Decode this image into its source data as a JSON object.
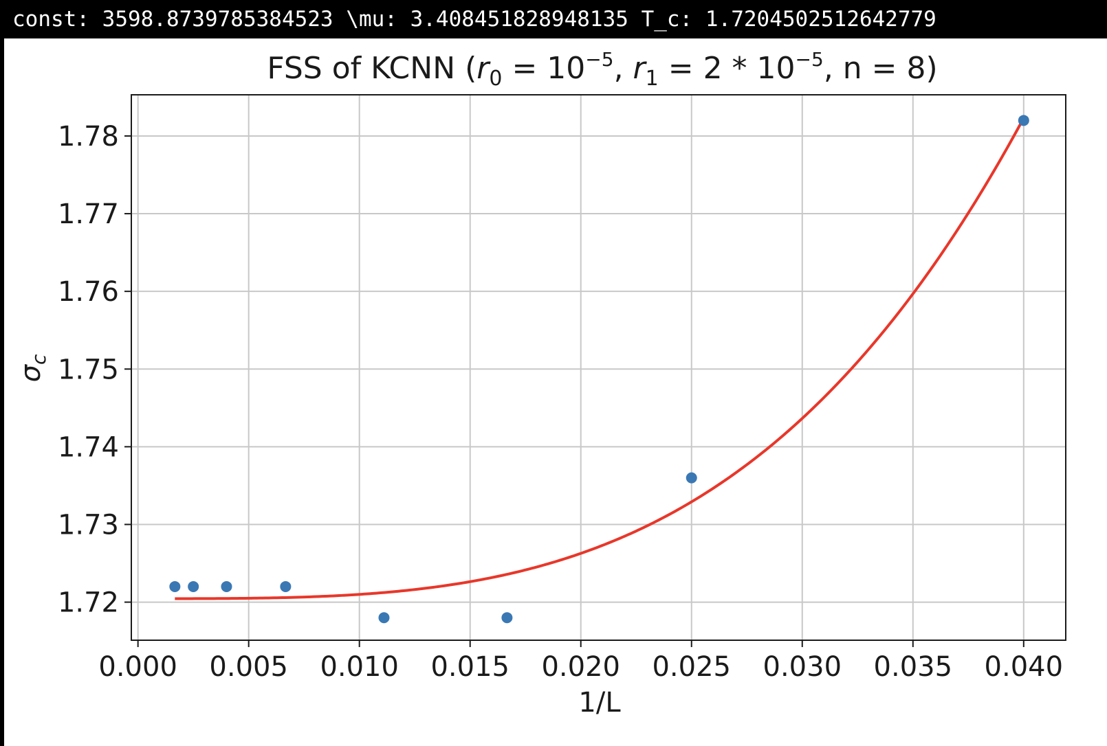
{
  "console": {
    "const_label": "const:",
    "const_value": "3598.8739785384523",
    "mu_label": "\\mu:",
    "mu_value": "3.408451828948135",
    "tc_label": "T_c:",
    "tc_value": "1.7204502512642779"
  },
  "chart_data": {
    "type": "scatter",
    "title": {
      "prefix": "FSS of KCNN (",
      "r0_symbol": "r",
      "r0_sub": "0",
      "eq1": " = 10",
      "exp1": "−5",
      "sep1": ", ",
      "r1_symbol": "r",
      "r1_sub": "1",
      "eq2": " = 2 * 10",
      "exp2": "−5",
      "suffix": ", n = 8)"
    },
    "xlabel": "1/L",
    "ylabel": {
      "symbol": "σ",
      "sub": "c"
    },
    "xlim": [
      -0.0003,
      0.0419
    ],
    "ylim": [
      1.7151,
      1.7853
    ],
    "xticks": [
      "0.000",
      "0.005",
      "0.010",
      "0.015",
      "0.020",
      "0.025",
      "0.030",
      "0.035",
      "0.040"
    ],
    "yticks": [
      "1.72",
      "1.73",
      "1.74",
      "1.75",
      "1.76",
      "1.77",
      "1.78"
    ],
    "grid": true,
    "series": [
      {
        "kind": "points",
        "color": "#3a78b4",
        "x": [
          0.001667,
          0.0025,
          0.004,
          0.006667,
          0.011111,
          0.016667,
          0.025,
          0.04
        ],
        "y": [
          1.722,
          1.722,
          1.722,
          1.722,
          1.718,
          1.718,
          1.736,
          1.782
        ]
      },
      {
        "kind": "fit",
        "color": "#e8372a",
        "const": 3598.8739785384523,
        "mu": 3.408451828948135,
        "tc": 1.7204502512642779,
        "x_range": [
          0.001667,
          0.04
        ]
      }
    ]
  }
}
